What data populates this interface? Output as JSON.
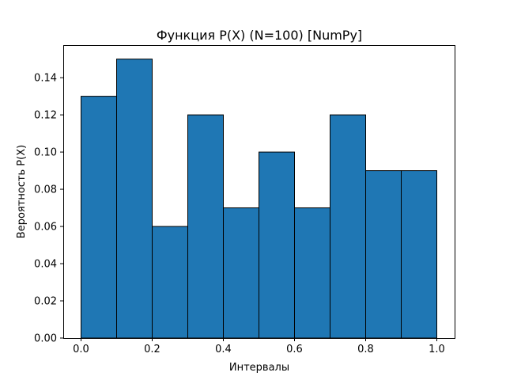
{
  "chart_data": {
    "type": "bar",
    "title": "Функция P(X) (N=100) [NumPy]",
    "xlabel": "Интервалы",
    "ylabel": "Вероятность P(X)",
    "bin_edges": [
      0.0,
      0.1,
      0.2,
      0.3,
      0.4,
      0.5,
      0.6,
      0.7,
      0.8,
      0.9,
      1.0
    ],
    "values": [
      0.13,
      0.15,
      0.06,
      0.12,
      0.07,
      0.1,
      0.07,
      0.12,
      0.09,
      0.09
    ],
    "xlim": [
      -0.05,
      1.05
    ],
    "ylim": [
      0.0,
      0.1575
    ],
    "xticks": [
      0.0,
      0.2,
      0.4,
      0.6,
      0.8,
      1.0
    ],
    "xtick_labels": [
      "0.0",
      "0.2",
      "0.4",
      "0.6",
      "0.8",
      "1.0"
    ],
    "yticks": [
      0.0,
      0.02,
      0.04,
      0.06,
      0.08,
      0.1,
      0.12,
      0.14
    ],
    "ytick_labels": [
      "0.00",
      "0.02",
      "0.04",
      "0.06",
      "0.08",
      "0.10",
      "0.12",
      "0.14"
    ],
    "grid": false,
    "legend": "none",
    "bar_color": "#1f77b4",
    "edge_color": "#000000"
  }
}
